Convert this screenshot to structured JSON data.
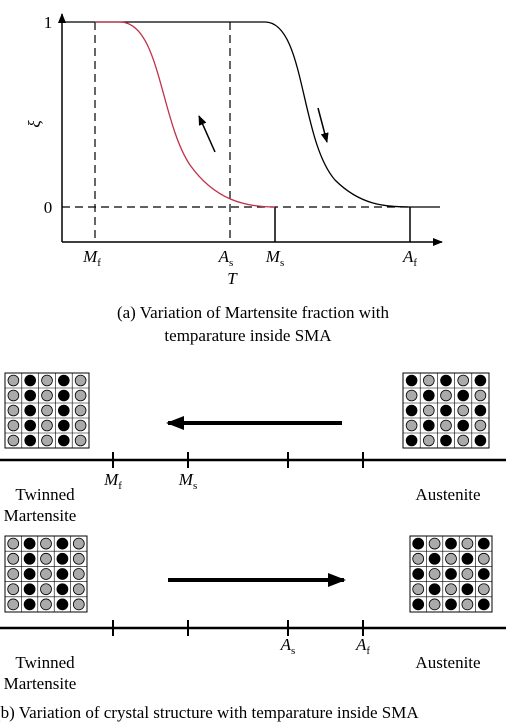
{
  "panel_a": {
    "y_label": "ξ",
    "x_label": "T",
    "y_ticks": [
      "1",
      "0"
    ],
    "x_ticks": [
      {
        "symbol": "M",
        "sub": "f"
      },
      {
        "symbol": "A",
        "sub": "s"
      },
      {
        "symbol": "M",
        "sub": "s"
      },
      {
        "symbol": "A",
        "sub": "f"
      }
    ],
    "caption": [
      "(a) Variation of Martensite fraction with",
      "temparature inside SMA"
    ]
  },
  "panel_b": {
    "rows": [
      {
        "left_label": [
          "Twinned",
          "Martensite"
        ],
        "right_label": "Austenite",
        "ticks": [
          {
            "symbol": "M",
            "sub": "f"
          },
          {
            "symbol": "M",
            "sub": "s"
          }
        ]
      },
      {
        "left_label": [
          "Twinned",
          "Martensite"
        ],
        "right_label": "Austenite",
        "ticks": [
          {
            "symbol": "A",
            "sub": "s"
          },
          {
            "symbol": "A",
            "sub": "f"
          }
        ]
      }
    ],
    "caption": "(b) Variation of crystal structure with temparature inside SMA"
  }
}
